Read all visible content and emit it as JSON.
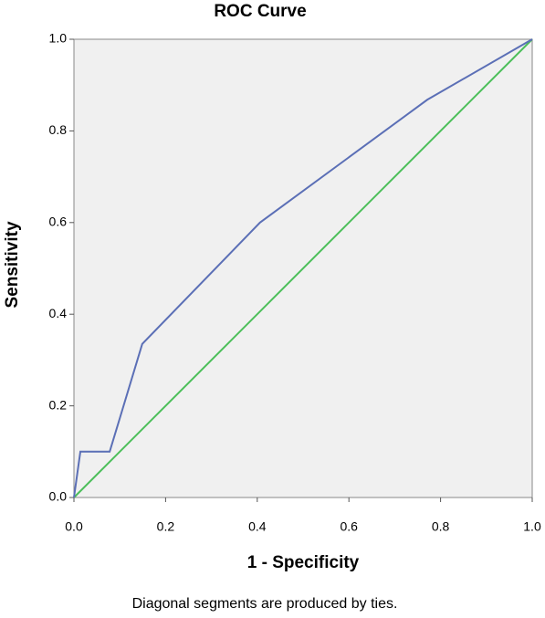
{
  "chart_data": {
    "type": "line",
    "title": "ROC Curve",
    "x_label": "1 - Specificity",
    "y_label": "Sensitivity",
    "annotation": "Diagonal segments are produced by ties.",
    "series": [
      {
        "color": "#5b6fb6",
        "x": [
          0,
          0.014,
          0.078,
          0.149,
          0.406,
          0.771,
          1
        ],
        "values": [
          0,
          0.1,
          0.1,
          0.335,
          0.6,
          0.868,
          1
        ]
      },
      {
        "color": "#4cbf5a",
        "x": [
          0,
          1
        ],
        "values": [
          0,
          1
        ]
      }
    ],
    "xlim": [
      0,
      1
    ],
    "ylim": [
      0,
      1
    ],
    "xticks": [
      {
        "value": 0,
        "label": "0.0"
      },
      0.2,
      0.4,
      0.6,
      0.8,
      {
        "value": 1,
        "label": "1.0"
      }
    ],
    "yticks": [
      {
        "value": 0,
        "label": "0.0"
      },
      0.2,
      0.4,
      0.6,
      0.8,
      {
        "value": 1,
        "label": "1.0"
      }
    ],
    "grid": false
  }
}
